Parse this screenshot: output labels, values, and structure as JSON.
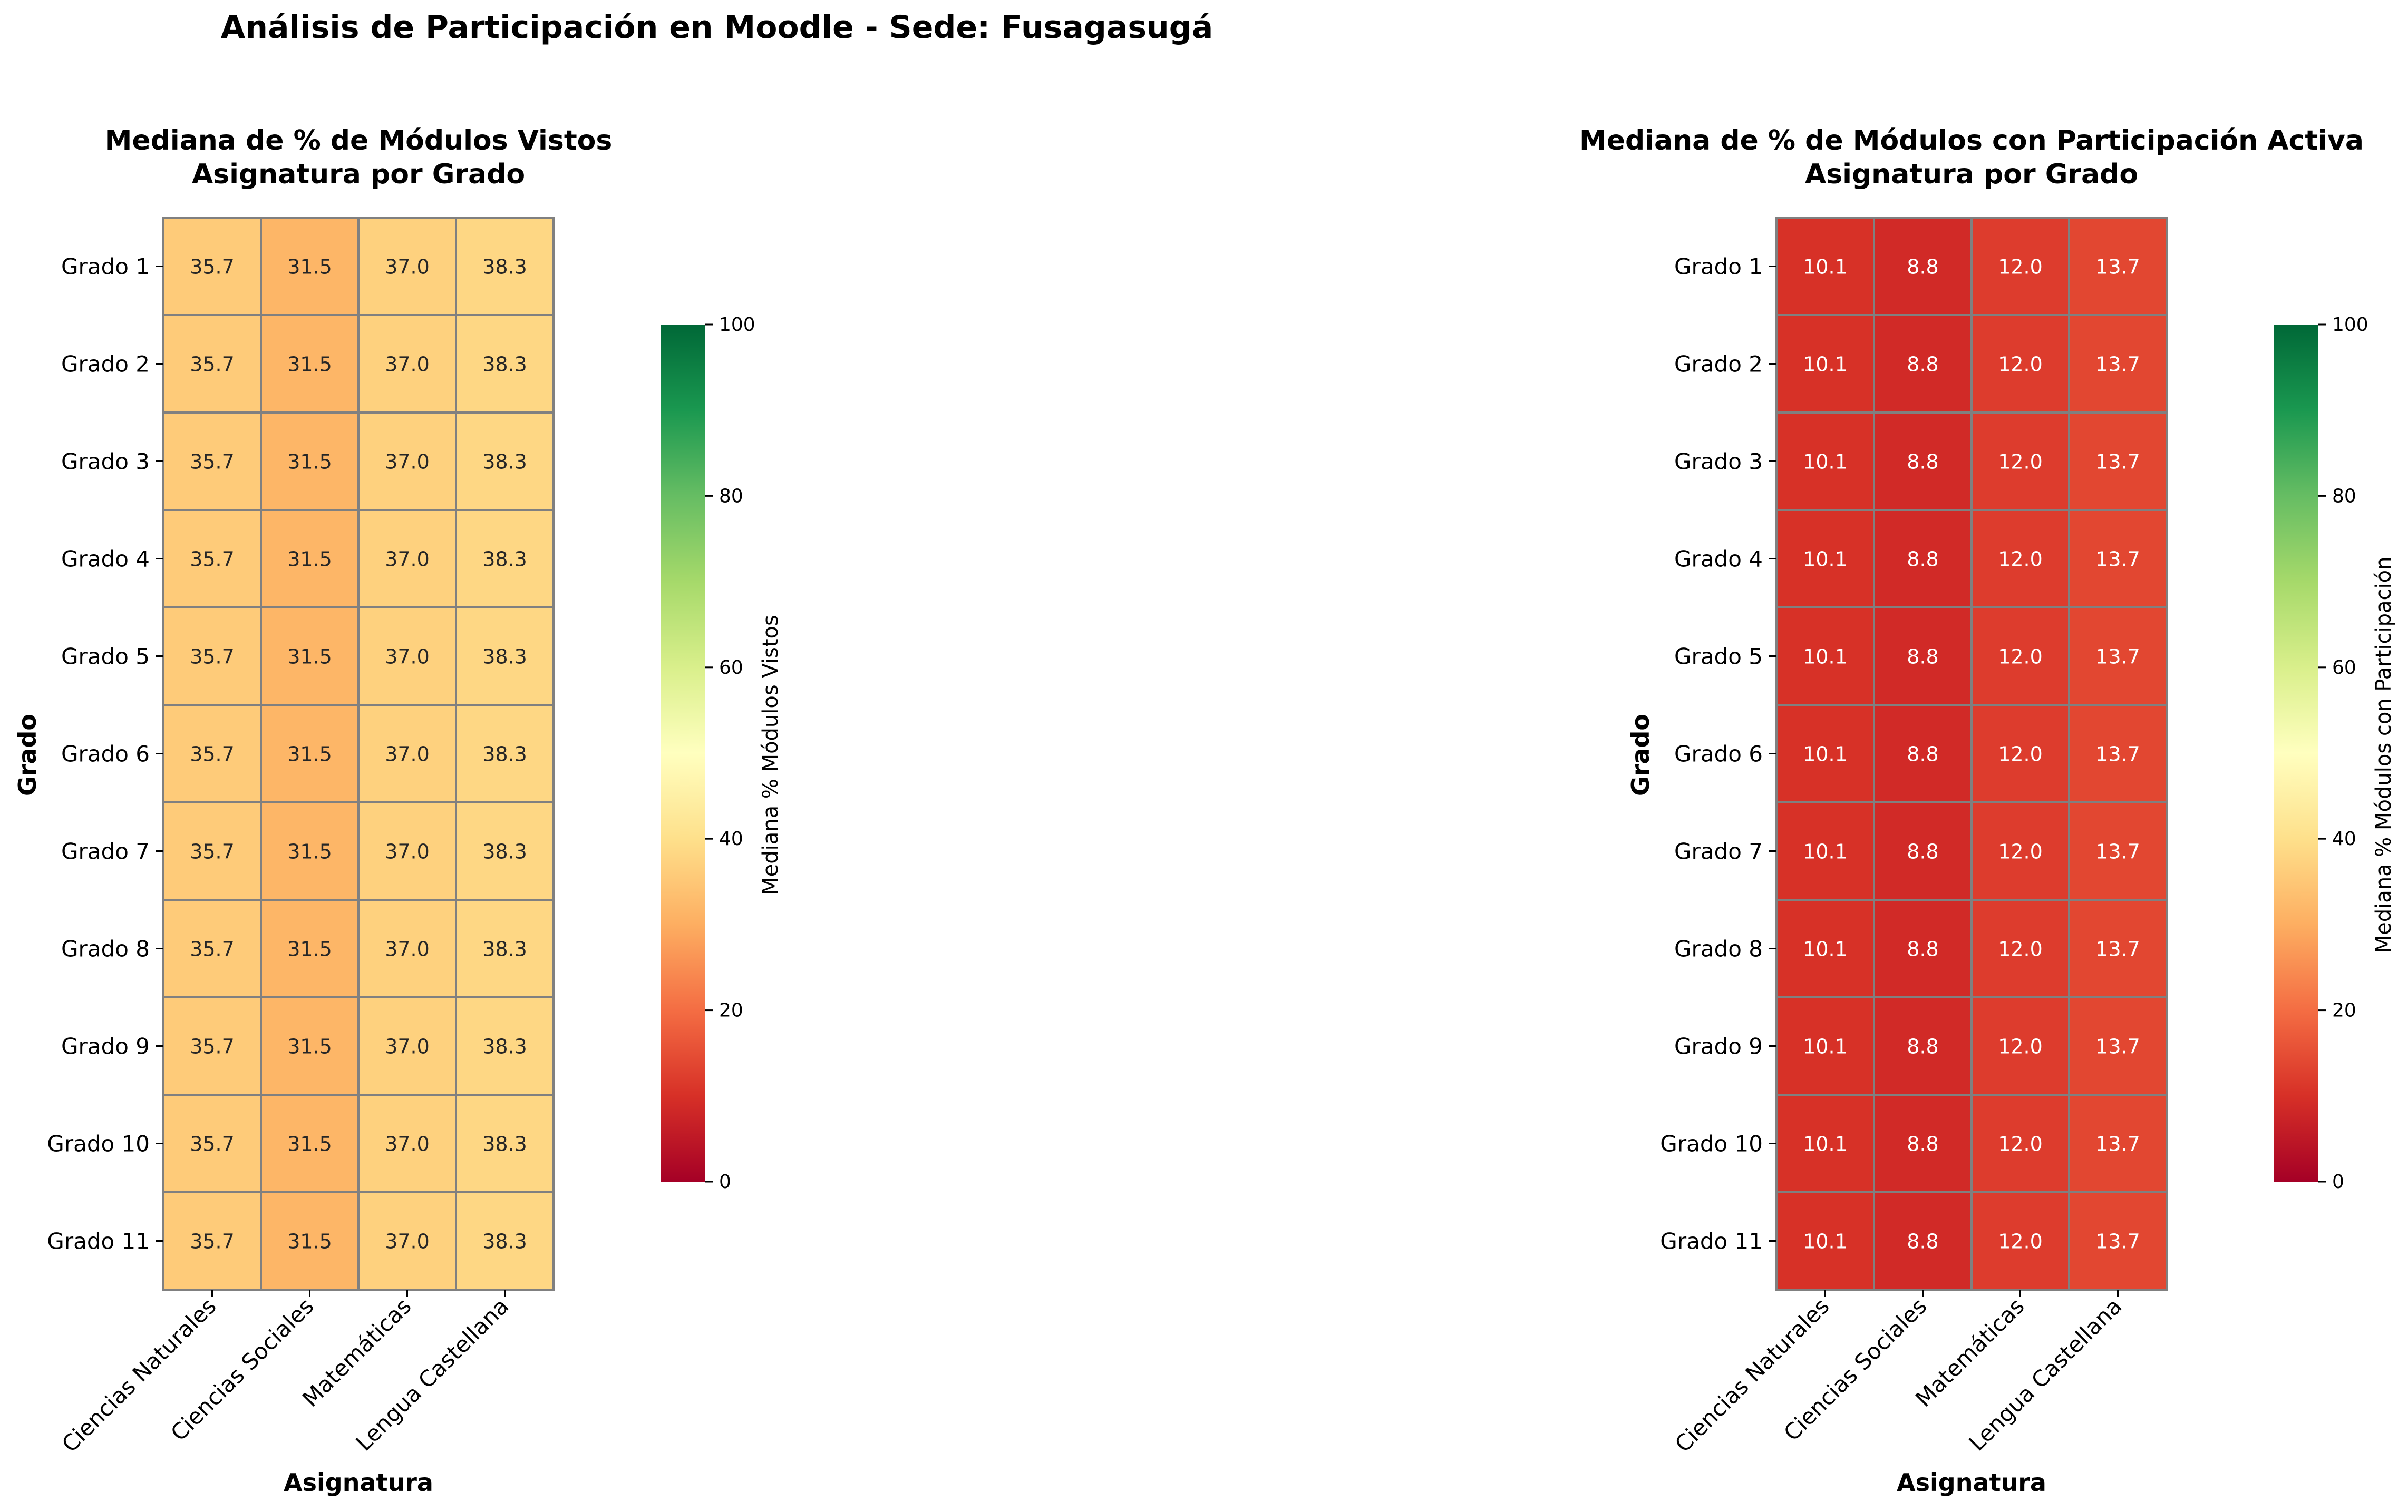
{
  "suptitle": "Análisis de Participación en Moodle - Sede: Fusagasugá",
  "colorscale": {
    "name": "RdYlGn",
    "stops": [
      "#a50026",
      "#d73027",
      "#f46d43",
      "#fdae61",
      "#fee08b",
      "#ffffbf",
      "#d9ef8b",
      "#a6d96a",
      "#66bd63",
      "#1a9850",
      "#006837"
    ],
    "cell_border": "#808080"
  },
  "chart_data": [
    {
      "type": "heatmap",
      "title_line1": "Mediana de % de Módulos Vistos",
      "title_line2": "Asignatura por Grado",
      "xlabel": "Asignatura",
      "ylabel": "Grado",
      "x_categories": [
        "Ciencias Naturales",
        "Ciencias Sociales",
        "Matemáticas",
        "Lengua Castellana"
      ],
      "y_categories": [
        "Grado 1",
        "Grado 2",
        "Grado 3",
        "Grado 4",
        "Grado 5",
        "Grado 6",
        "Grado 7",
        "Grado 8",
        "Grado 9",
        "Grado 10",
        "Grado 11"
      ],
      "values": [
        [
          35.7,
          31.5,
          37.0,
          38.3
        ],
        [
          35.7,
          31.5,
          37.0,
          38.3
        ],
        [
          35.7,
          31.5,
          37.0,
          38.3
        ],
        [
          35.7,
          31.5,
          37.0,
          38.3
        ],
        [
          35.7,
          31.5,
          37.0,
          38.3
        ],
        [
          35.7,
          31.5,
          37.0,
          38.3
        ],
        [
          35.7,
          31.5,
          37.0,
          38.3
        ],
        [
          35.7,
          31.5,
          37.0,
          38.3
        ],
        [
          35.7,
          31.5,
          37.0,
          38.3
        ],
        [
          35.7,
          31.5,
          37.0,
          38.3
        ],
        [
          35.7,
          31.5,
          37.0,
          38.3
        ]
      ],
      "vmin": 0,
      "vmax": 100,
      "colorbar_label": "Mediana % Módulos Vistos",
      "colorbar_ticks": [
        0,
        20,
        40,
        60,
        80,
        100
      ]
    },
    {
      "type": "heatmap",
      "title_line1": "Mediana de % de Módulos con Participación Activa",
      "title_line2": "Asignatura por Grado",
      "xlabel": "Asignatura",
      "ylabel": "Grado",
      "x_categories": [
        "Ciencias Naturales",
        "Ciencias Sociales",
        "Matemáticas",
        "Lengua Castellana"
      ],
      "y_categories": [
        "Grado 1",
        "Grado 2",
        "Grado 3",
        "Grado 4",
        "Grado 5",
        "Grado 6",
        "Grado 7",
        "Grado 8",
        "Grado 9",
        "Grado 10",
        "Grado 11"
      ],
      "values": [
        [
          10.1,
          8.8,
          12.0,
          13.7
        ],
        [
          10.1,
          8.8,
          12.0,
          13.7
        ],
        [
          10.1,
          8.8,
          12.0,
          13.7
        ],
        [
          10.1,
          8.8,
          12.0,
          13.7
        ],
        [
          10.1,
          8.8,
          12.0,
          13.7
        ],
        [
          10.1,
          8.8,
          12.0,
          13.7
        ],
        [
          10.1,
          8.8,
          12.0,
          13.7
        ],
        [
          10.1,
          8.8,
          12.0,
          13.7
        ],
        [
          10.1,
          8.8,
          12.0,
          13.7
        ],
        [
          10.1,
          8.8,
          12.0,
          13.7
        ],
        [
          10.1,
          8.8,
          12.0,
          13.7
        ]
      ],
      "vmin": 0,
      "vmax": 100,
      "colorbar_label": "Mediana % Módulos con Participación",
      "colorbar_ticks": [
        0,
        20,
        40,
        60,
        80,
        100
      ]
    }
  ]
}
